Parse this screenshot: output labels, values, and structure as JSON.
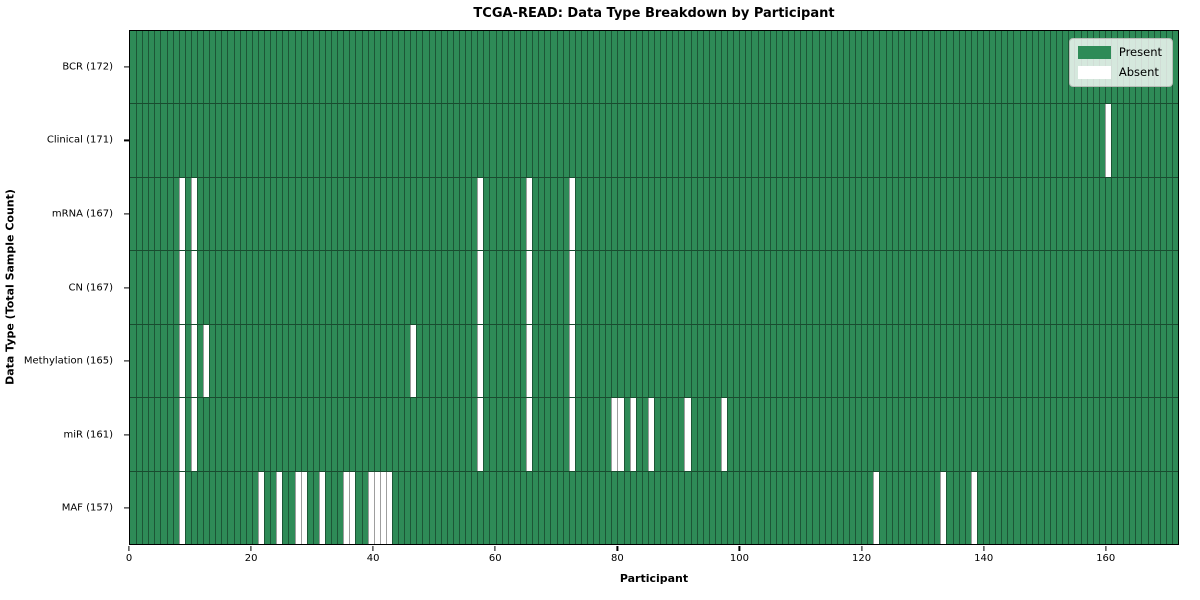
{
  "title": "TCGA-READ: Data Type Breakdown by Participant",
  "x_axis": {
    "label": "Participant",
    "tick_values": [
      0,
      20,
      40,
      60,
      80,
      100,
      120,
      140,
      160
    ]
  },
  "y_axis": {
    "label": "Data Type (Total Sample Count)"
  },
  "legend": {
    "present_label": "Present",
    "absent_label": "Absent"
  },
  "colors": {
    "present": "#2e8b57",
    "absent": "#ffffff"
  },
  "chart_data": {
    "type": "heatmap",
    "title": "TCGA-READ: Data Type Breakdown by Participant",
    "xlabel": "Participant",
    "ylabel": "Data Type (Total Sample Count)",
    "x_range": [
      0,
      172
    ],
    "n_participants": 172,
    "grid": true,
    "legend_position": "upper right",
    "legend_entries": [
      "Present",
      "Absent"
    ],
    "value_encoding": {
      "present_color": "#2e8b57",
      "absent_color": "#ffffff"
    },
    "rows": [
      {
        "label": "BCR (172)",
        "data_type": "BCR",
        "total_sample_count": 172,
        "absent_participants": []
      },
      {
        "label": "Clinical (171)",
        "data_type": "Clinical",
        "total_sample_count": 171,
        "absent_participants": [
          160
        ]
      },
      {
        "label": "mRNA (167)",
        "data_type": "mRNA",
        "total_sample_count": 167,
        "absent_participants": [
          8,
          10,
          57,
          65,
          72
        ]
      },
      {
        "label": "CN (167)",
        "data_type": "CN",
        "total_sample_count": 167,
        "absent_participants": [
          8,
          10,
          57,
          65,
          72
        ]
      },
      {
        "label": "Methylation (165)",
        "data_type": "Methylation",
        "total_sample_count": 165,
        "absent_participants": [
          8,
          10,
          12,
          46,
          57,
          65,
          72
        ]
      },
      {
        "label": "miR (161)",
        "data_type": "miR",
        "total_sample_count": 161,
        "absent_participants": [
          8,
          10,
          57,
          65,
          72,
          79,
          80,
          82,
          85,
          91,
          97
        ]
      },
      {
        "label": "MAF (157)",
        "data_type": "MAF",
        "total_sample_count": 157,
        "absent_participants": [
          8,
          21,
          24,
          27,
          28,
          31,
          35,
          36,
          39,
          40,
          41,
          42,
          122,
          133,
          138
        ]
      }
    ]
  }
}
